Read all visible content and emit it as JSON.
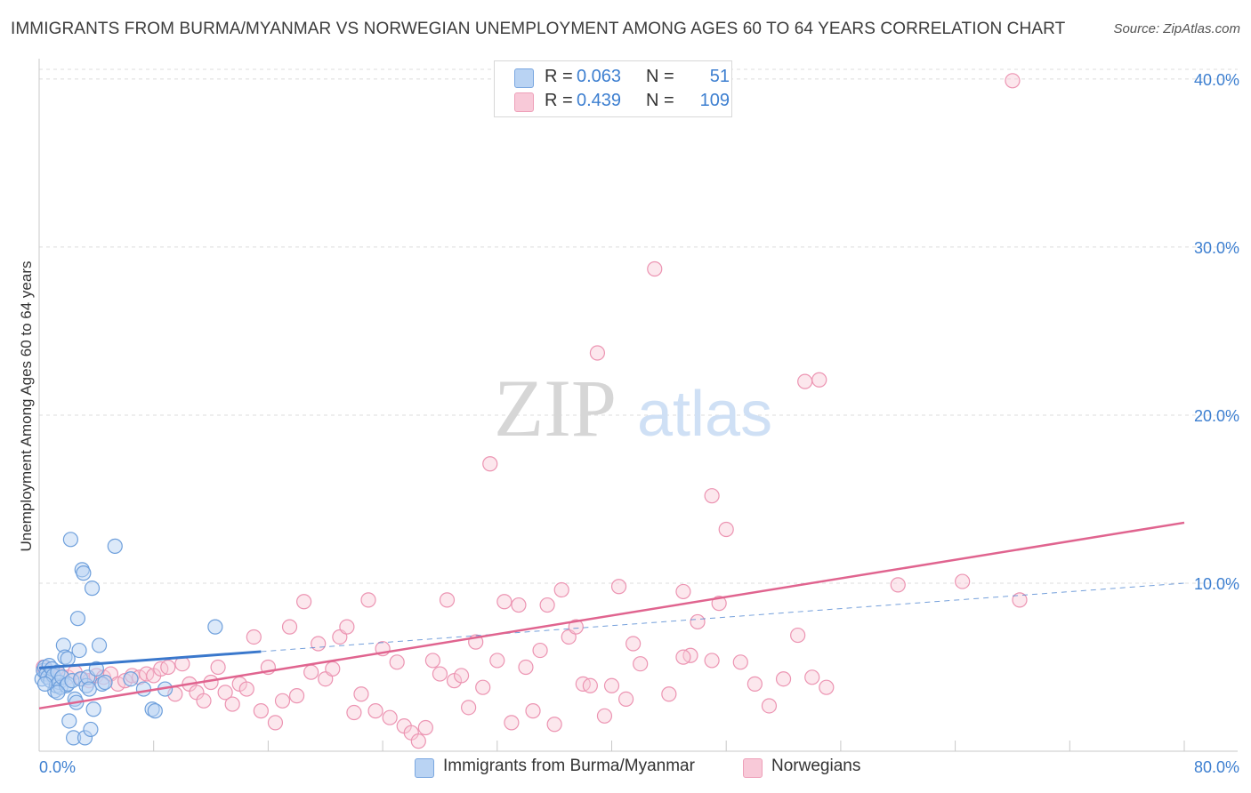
{
  "title": "IMMIGRANTS FROM BURMA/MYANMAR VS NORWEGIAN UNEMPLOYMENT AMONG AGES 60 TO 64 YEARS CORRELATION CHART",
  "source": "Source: ZipAtlas.com",
  "watermark": {
    "zip": "ZIP",
    "atlas": "atlas"
  },
  "legend": {
    "rows": [
      {
        "r_label": "R =",
        "r_value": "0.063",
        "n_label": "N =",
        "n_value": "51"
      },
      {
        "r_label": "R =",
        "r_value": "0.439",
        "n_label": "N =",
        "n_value": "109"
      }
    ],
    "series_names": [
      "Immigrants from Burma/Myanmar",
      "Norwegians"
    ]
  },
  "colors": {
    "blue_fill": "#b9d3f3",
    "blue_stroke": "#6fa0dc",
    "blue_line": "#3a78cc",
    "pink_fill": "#f8c9d8",
    "pink_stroke": "#ec94b2",
    "pink_line": "#e0648f",
    "tick_text": "#3d7fd0",
    "grid": "#dcdcdc"
  },
  "chart_data": {
    "type": "scatter",
    "title": "IMMIGRANTS FROM BURMA/MYANMAR VS NORWEGIAN UNEMPLOYMENT AMONG AGES 60 TO 64 YEARS CORRELATION CHART",
    "xlabel": "",
    "ylabel": "Unemployment Among Ages 60 to 64 years",
    "xlim": [
      0,
      80
    ],
    "ylim": [
      0,
      41
    ],
    "x_tick_labels": [
      "0.0%",
      "80.0%"
    ],
    "y_ticks": [
      10,
      20,
      30,
      40
    ],
    "y_tick_labels": [
      "10.0%",
      "20.0%",
      "30.0%",
      "40.0%"
    ],
    "grid": true,
    "series": [
      {
        "name": "Immigrants from Burma/Myanmar",
        "color": "#b9d3f3",
        "points": [
          [
            0.2,
            4.3
          ],
          [
            0.3,
            4.8
          ],
          [
            0.4,
            5.0
          ],
          [
            0.5,
            4.6
          ],
          [
            0.6,
            4.4
          ],
          [
            0.7,
            5.1
          ],
          [
            0.8,
            4.2
          ],
          [
            0.9,
            4.9
          ],
          [
            1.0,
            4.5
          ],
          [
            1.1,
            3.6
          ],
          [
            1.2,
            3.9
          ],
          [
            1.3,
            4.7
          ],
          [
            1.4,
            4.1
          ],
          [
            1.5,
            3.8
          ],
          [
            1.6,
            4.4
          ],
          [
            1.7,
            6.3
          ],
          [
            1.8,
            5.6
          ],
          [
            1.9,
            3.9
          ],
          [
            2.0,
            4.0
          ],
          [
            2.1,
            1.8
          ],
          [
            2.2,
            12.6
          ],
          [
            2.3,
            4.2
          ],
          [
            2.4,
            0.8
          ],
          [
            2.5,
            3.1
          ],
          [
            2.6,
            2.9
          ],
          [
            2.7,
            7.9
          ],
          [
            2.8,
            6.0
          ],
          [
            2.9,
            4.3
          ],
          [
            3.0,
            10.8
          ],
          [
            3.1,
            10.6
          ],
          [
            3.2,
            0.8
          ],
          [
            3.3,
            3.9
          ],
          [
            3.4,
            4.4
          ],
          [
            3.5,
            3.7
          ],
          [
            3.6,
            1.3
          ],
          [
            3.7,
            9.7
          ],
          [
            3.8,
            2.5
          ],
          [
            4.0,
            4.9
          ],
          [
            4.2,
            6.3
          ],
          [
            4.4,
            4.0
          ],
          [
            4.6,
            4.1
          ],
          [
            5.3,
            12.2
          ],
          [
            6.4,
            4.3
          ],
          [
            7.3,
            3.7
          ],
          [
            7.9,
            2.5
          ],
          [
            8.1,
            2.4
          ],
          [
            8.8,
            3.7
          ],
          [
            12.3,
            7.4
          ],
          [
            0.4,
            4.0
          ],
          [
            1.3,
            3.5
          ],
          [
            2.0,
            5.5
          ]
        ]
      },
      {
        "name": "Norwegians",
        "color": "#f8c9d8",
        "points": [
          [
            0.3,
            5.0
          ],
          [
            0.5,
            4.8
          ],
          [
            0.8,
            4.6
          ],
          [
            1.1,
            4.3
          ],
          [
            1.5,
            4.5
          ],
          [
            2.0,
            4.4
          ],
          [
            2.5,
            4.7
          ],
          [
            3.0,
            4.3
          ],
          [
            3.5,
            4.2
          ],
          [
            4.0,
            4.5
          ],
          [
            4.5,
            4.4
          ],
          [
            5.0,
            4.6
          ],
          [
            5.5,
            4.0
          ],
          [
            6.0,
            4.2
          ],
          [
            6.5,
            4.5
          ],
          [
            7.0,
            4.4
          ],
          [
            7.5,
            4.6
          ],
          [
            8.0,
            4.5
          ],
          [
            8.5,
            4.9
          ],
          [
            9.0,
            5.0
          ],
          [
            9.5,
            3.4
          ],
          [
            10.0,
            5.2
          ],
          [
            10.5,
            4.0
          ],
          [
            11.0,
            3.5
          ],
          [
            11.5,
            3.0
          ],
          [
            12.0,
            4.1
          ],
          [
            12.5,
            5.0
          ],
          [
            13.0,
            3.5
          ],
          [
            13.5,
            2.8
          ],
          [
            14.0,
            4.0
          ],
          [
            14.5,
            3.7
          ],
          [
            15.0,
            6.8
          ],
          [
            15.5,
            2.4
          ],
          [
            16.0,
            5.0
          ],
          [
            16.5,
            1.7
          ],
          [
            17.0,
            3.0
          ],
          [
            17.5,
            7.4
          ],
          [
            18.0,
            3.3
          ],
          [
            18.5,
            8.9
          ],
          [
            19.0,
            4.7
          ],
          [
            19.5,
            6.4
          ],
          [
            20.0,
            4.3
          ],
          [
            20.5,
            4.9
          ],
          [
            21.0,
            6.8
          ],
          [
            21.5,
            7.4
          ],
          [
            22.0,
            2.3
          ],
          [
            22.5,
            3.4
          ],
          [
            23.0,
            9.0
          ],
          [
            23.5,
            2.4
          ],
          [
            24.0,
            6.1
          ],
          [
            24.5,
            2.0
          ],
          [
            25.0,
            5.3
          ],
          [
            25.5,
            1.5
          ],
          [
            26.0,
            1.1
          ],
          [
            26.5,
            0.6
          ],
          [
            27.0,
            1.4
          ],
          [
            27.5,
            5.4
          ],
          [
            28.0,
            4.6
          ],
          [
            28.5,
            9.0
          ],
          [
            29.0,
            4.2
          ],
          [
            29.5,
            4.5
          ],
          [
            30.0,
            2.6
          ],
          [
            30.5,
            6.5
          ],
          [
            31.0,
            3.8
          ],
          [
            31.5,
            17.1
          ],
          [
            32.0,
            5.4
          ],
          [
            32.5,
            8.9
          ],
          [
            33.0,
            1.7
          ],
          [
            33.5,
            8.7
          ],
          [
            34.0,
            5.0
          ],
          [
            34.5,
            2.4
          ],
          [
            35.0,
            6.0
          ],
          [
            35.5,
            8.7
          ],
          [
            36.0,
            1.6
          ],
          [
            36.5,
            9.6
          ],
          [
            37.0,
            6.8
          ],
          [
            37.5,
            7.4
          ],
          [
            38.0,
            4.0
          ],
          [
            38.5,
            3.9
          ],
          [
            39.0,
            23.7
          ],
          [
            39.5,
            2.1
          ],
          [
            40.0,
            3.9
          ],
          [
            40.5,
            9.8
          ],
          [
            41.0,
            3.1
          ],
          [
            41.5,
            6.4
          ],
          [
            42.0,
            5.2
          ],
          [
            43.0,
            28.7
          ],
          [
            44.0,
            3.4
          ],
          [
            45.0,
            9.5
          ],
          [
            45.5,
            5.7
          ],
          [
            46.0,
            7.7
          ],
          [
            47.0,
            15.2
          ],
          [
            47.5,
            8.8
          ],
          [
            48.0,
            13.2
          ],
          [
            49.0,
            5.3
          ],
          [
            50.0,
            4.0
          ],
          [
            51.0,
            2.7
          ],
          [
            52.0,
            4.3
          ],
          [
            53.0,
            6.9
          ],
          [
            53.5,
            22.0
          ],
          [
            54.0,
            4.4
          ],
          [
            54.5,
            22.1
          ],
          [
            55.0,
            3.8
          ],
          [
            60.0,
            9.9
          ],
          [
            64.5,
            10.1
          ],
          [
            68.5,
            9.0
          ],
          [
            68.0,
            39.9
          ],
          [
            47.0,
            5.4
          ],
          [
            45.0,
            5.6
          ]
        ]
      }
    ],
    "trend_lines": [
      {
        "series": "Immigrants from Burma/Myanmar",
        "x": [
          0,
          80
        ],
        "y": [
          4.95,
          10.0
        ],
        "solid_until_x": 15.5
      },
      {
        "series": "Norwegians",
        "x": [
          0,
          80
        ],
        "y": [
          2.55,
          13.6
        ]
      }
    ]
  }
}
